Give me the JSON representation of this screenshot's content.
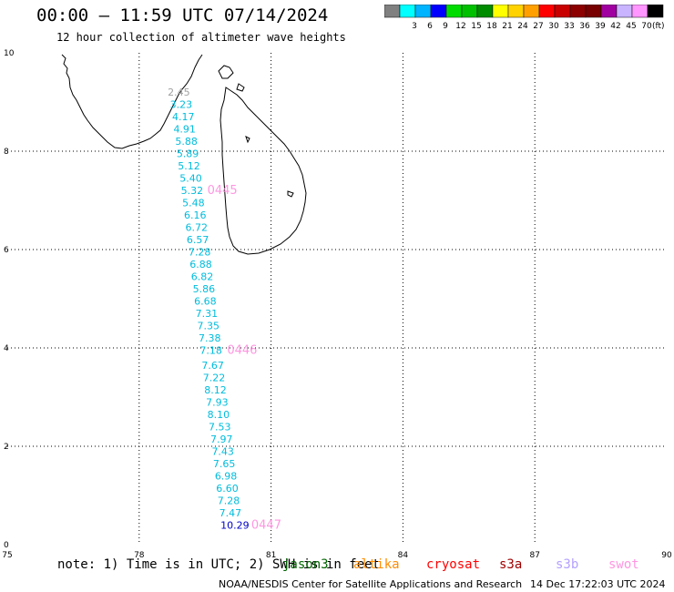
{
  "header": {
    "title": "00:00 – 11:59 UTC 07/14/2024",
    "subtitle": "12 hour collection of altimeter wave heights"
  },
  "legend": {
    "unit": "(ft)",
    "bins": [
      {
        "label": "",
        "color": "#808080"
      },
      {
        "label": "3",
        "color": "#00ffff"
      },
      {
        "label": "6",
        "color": "#00b4ff"
      },
      {
        "label": "9",
        "color": "#0000ff"
      },
      {
        "label": "12",
        "color": "#00dc00"
      },
      {
        "label": "15",
        "color": "#00c000"
      },
      {
        "label": "18",
        "color": "#008c00"
      },
      {
        "label": "21",
        "color": "#ffff00"
      },
      {
        "label": "24",
        "color": "#ffd200"
      },
      {
        "label": "27",
        "color": "#ffa000"
      },
      {
        "label": "30",
        "color": "#ff0000"
      },
      {
        "label": "33",
        "color": "#c80000"
      },
      {
        "label": "36",
        "color": "#8c0000"
      },
      {
        "label": "39",
        "color": "#780000"
      },
      {
        "label": "42",
        "color": "#a000a0"
      },
      {
        "label": "45",
        "color": "#c8b4ff"
      },
      {
        "label": "70",
        "color": "#ff96ff"
      },
      {
        "label": "",
        "color": "#000000"
      }
    ]
  },
  "axes": {
    "x_ticks": [
      "75",
      "78",
      "81",
      "84",
      "87",
      "90"
    ],
    "y_ticks": [
      "0",
      "2",
      "4",
      "6",
      "8",
      "10"
    ]
  },
  "wave_heights": [
    {
      "value": "2.45",
      "lon": 78.65,
      "lat": 9.2,
      "color": "#a0a0a0"
    },
    {
      "value": "3.23",
      "lon": 78.7,
      "lat": 8.95,
      "color": "#00bcdc"
    },
    {
      "value": "4.17",
      "lon": 78.75,
      "lat": 8.7,
      "color": "#00bcdc"
    },
    {
      "value": "4.91",
      "lon": 78.78,
      "lat": 8.45,
      "color": "#00bcdc"
    },
    {
      "value": "5.88",
      "lon": 78.82,
      "lat": 8.2,
      "color": "#00bcdc"
    },
    {
      "value": "5.89",
      "lon": 78.85,
      "lat": 7.95,
      "color": "#00bcdc"
    },
    {
      "value": "5.12",
      "lon": 78.88,
      "lat": 7.7,
      "color": "#00bcdc"
    },
    {
      "value": "5.40",
      "lon": 78.92,
      "lat": 7.45,
      "color": "#00bcdc"
    },
    {
      "value": "5.32",
      "lon": 78.95,
      "lat": 7.2,
      "color": "#00bcdc"
    },
    {
      "value": "5.48",
      "lon": 78.98,
      "lat": 6.95,
      "color": "#00bcdc"
    },
    {
      "value": "6.16",
      "lon": 79.02,
      "lat": 6.7,
      "color": "#00bcdc"
    },
    {
      "value": "6.72",
      "lon": 79.05,
      "lat": 6.45,
      "color": "#00bcdc"
    },
    {
      "value": "6.57",
      "lon": 79.08,
      "lat": 6.2,
      "color": "#00bcdc"
    },
    {
      "value": "7.28",
      "lon": 79.12,
      "lat": 5.95,
      "color": "#00bcdc"
    },
    {
      "value": "6.88",
      "lon": 79.15,
      "lat": 5.7,
      "color": "#00bcdc"
    },
    {
      "value": "6.82",
      "lon": 79.18,
      "lat": 5.45,
      "color": "#00bcdc"
    },
    {
      "value": "5.86",
      "lon": 79.22,
      "lat": 5.2,
      "color": "#00bcdc"
    },
    {
      "value": "6.68",
      "lon": 79.25,
      "lat": 4.95,
      "color": "#00bcdc"
    },
    {
      "value": "7.31",
      "lon": 79.28,
      "lat": 4.7,
      "color": "#00bcdc"
    },
    {
      "value": "7.35",
      "lon": 79.32,
      "lat": 4.45,
      "color": "#00bcdc"
    },
    {
      "value": "7.38",
      "lon": 79.35,
      "lat": 4.2,
      "color": "#00bcdc"
    },
    {
      "value": "7.18",
      "lon": 79.38,
      "lat": 3.95,
      "color": "#00bcdc"
    },
    {
      "value": "7.67",
      "lon": 79.42,
      "lat": 3.65,
      "color": "#00bcdc"
    },
    {
      "value": "7.22",
      "lon": 79.45,
      "lat": 3.4,
      "color": "#00bcdc"
    },
    {
      "value": "8.12",
      "lon": 79.48,
      "lat": 3.15,
      "color": "#00bcdc"
    },
    {
      "value": "7.93",
      "lon": 79.52,
      "lat": 2.9,
      "color": "#00bcdc"
    },
    {
      "value": "8.10",
      "lon": 79.55,
      "lat": 2.65,
      "color": "#00bcdc"
    },
    {
      "value": "7.53",
      "lon": 79.58,
      "lat": 2.4,
      "color": "#00bcdc"
    },
    {
      "value": "7.97",
      "lon": 79.62,
      "lat": 2.15,
      "color": "#00bcdc"
    },
    {
      "value": "7.43",
      "lon": 79.65,
      "lat": 1.9,
      "color": "#00bcdc"
    },
    {
      "value": "7.65",
      "lon": 79.68,
      "lat": 1.65,
      "color": "#00bcdc"
    },
    {
      "value": "6.98",
      "lon": 79.72,
      "lat": 1.4,
      "color": "#00bcdc"
    },
    {
      "value": "6.60",
      "lon": 79.75,
      "lat": 1.15,
      "color": "#00bcdc"
    },
    {
      "value": "7.28",
      "lon": 79.78,
      "lat": 0.9,
      "color": "#00bcdc"
    },
    {
      "value": "7.47",
      "lon": 79.82,
      "lat": 0.65,
      "color": "#00bcdc"
    },
    {
      "value": "10.29",
      "lon": 79.85,
      "lat": 0.4,
      "color": "#0000c8"
    }
  ],
  "pass_times": [
    {
      "value": "0445",
      "lon": 79.55,
      "lat": 7.2,
      "color": "#ff96e0"
    },
    {
      "value": "0446",
      "lon": 80.0,
      "lat": 3.95,
      "color": "#ff96e0"
    },
    {
      "value": "0447",
      "lon": 80.55,
      "lat": 0.4,
      "color": "#ff96e0"
    }
  ],
  "footer": {
    "note": "note:  1) Time is in UTC; 2) SWH is in feet",
    "satellites": [
      {
        "name": "jason3",
        "color": "#006400"
      },
      {
        "name": "altika",
        "color": "#ff8c00"
      },
      {
        "name": "cryosat",
        "color": "#ff0000"
      },
      {
        "name": "s3a",
        "color": "#a00000"
      },
      {
        "name": "s3b",
        "color": "#b4a0ff"
      },
      {
        "name": "swot",
        "color": "#ff96e0"
      }
    ],
    "credit": "NOAA/NESDIS Center for Satellite Applications and Research",
    "date": "14 Dec 17:22:03 UTC 2024"
  }
}
